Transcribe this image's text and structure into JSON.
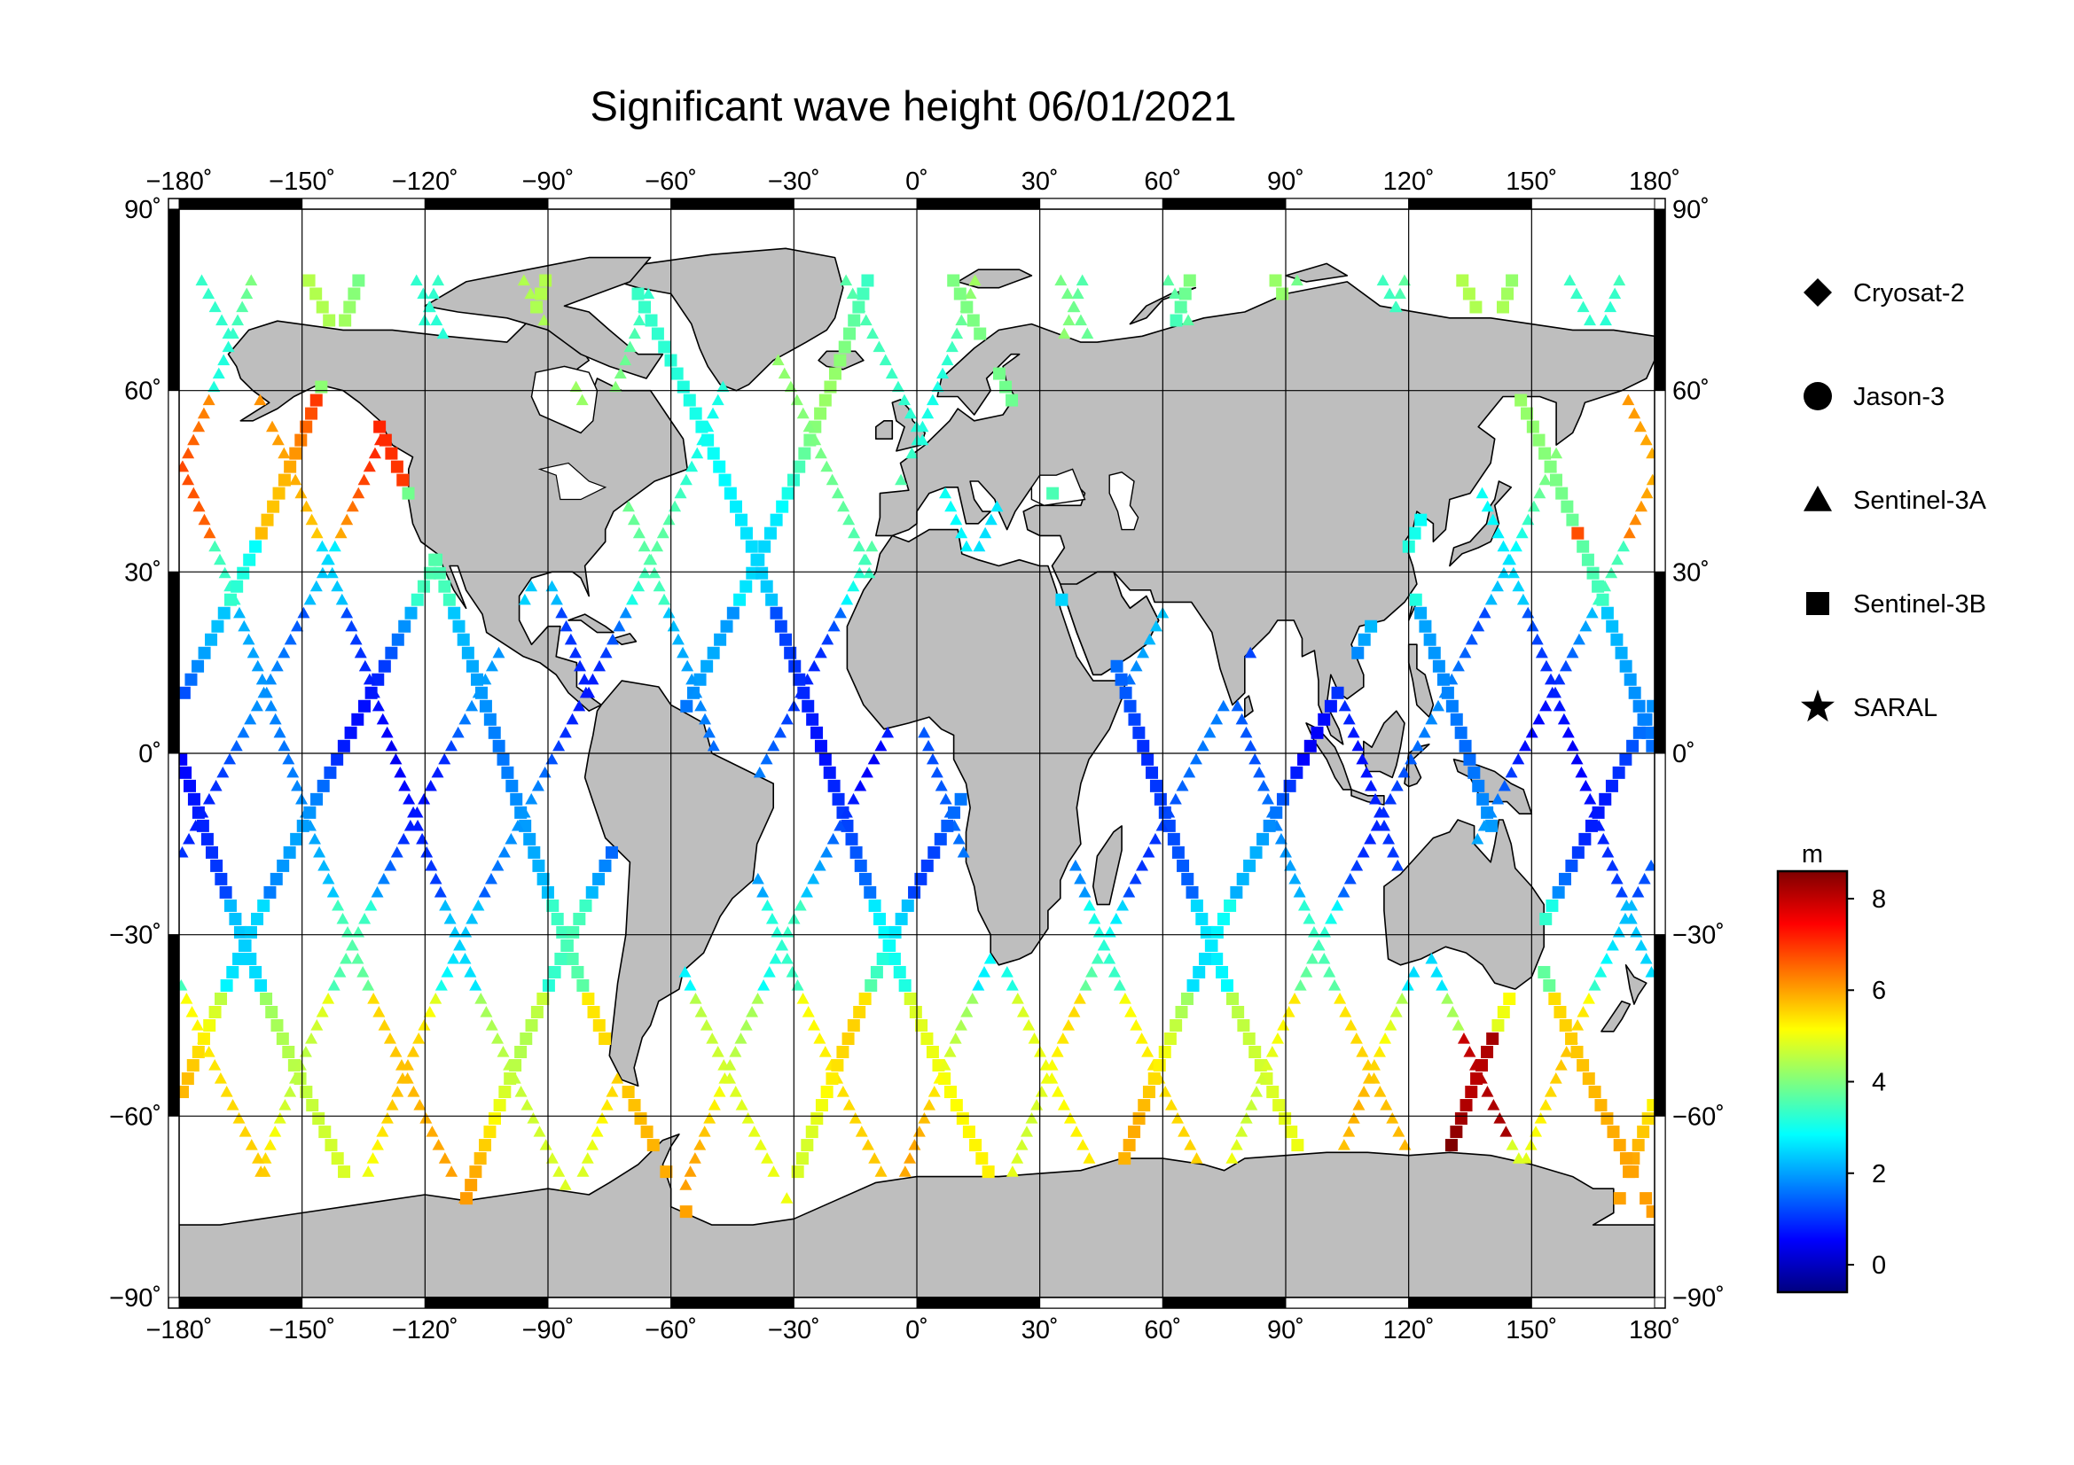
{
  "title": "Significant wave height 06/01/2021",
  "map": {
    "lon_ticks": [
      "−180˚",
      "−150˚",
      "−120˚",
      "−90˚",
      "−60˚",
      "−30˚",
      "0˚",
      "30˚",
      "60˚",
      "90˚",
      "120˚",
      "150˚",
      "180˚"
    ],
    "lat_ticks_left": [
      "90˚",
      "60˚",
      "30˚",
      "0˚",
      "−30˚",
      "−60˚",
      "−90˚"
    ],
    "lat_ticks_right": [
      "90˚",
      "60˚",
      "30˚",
      "0˚",
      "−30˚",
      "−60˚",
      "−90˚"
    ],
    "lon_range": [
      -180,
      180
    ],
    "lat_range": [
      -90,
      90
    ],
    "graticule_step": 30,
    "land_color": "#bebebe",
    "ocean_color": "#ffffff"
  },
  "legend": {
    "items": [
      {
        "label": "Cryosat-2",
        "symbol": "diamond"
      },
      {
        "label": "Jason-3",
        "symbol": "circle"
      },
      {
        "label": "Sentinel-3A",
        "symbol": "triangle"
      },
      {
        "label": "Sentinel-3B",
        "symbol": "square"
      },
      {
        "label": "SARAL",
        "symbol": "star"
      }
    ]
  },
  "colorbar": {
    "unit": "m",
    "ticks": [
      "8",
      "6",
      "4",
      "2",
      "0"
    ],
    "range": [
      -0.6,
      8.6
    ],
    "colormap": [
      "#00007f",
      "#0000ff",
      "#007fff",
      "#00ffff",
      "#7fff7f",
      "#ffff00",
      "#ff7f00",
      "#ff0000",
      "#7f0000"
    ]
  }
}
